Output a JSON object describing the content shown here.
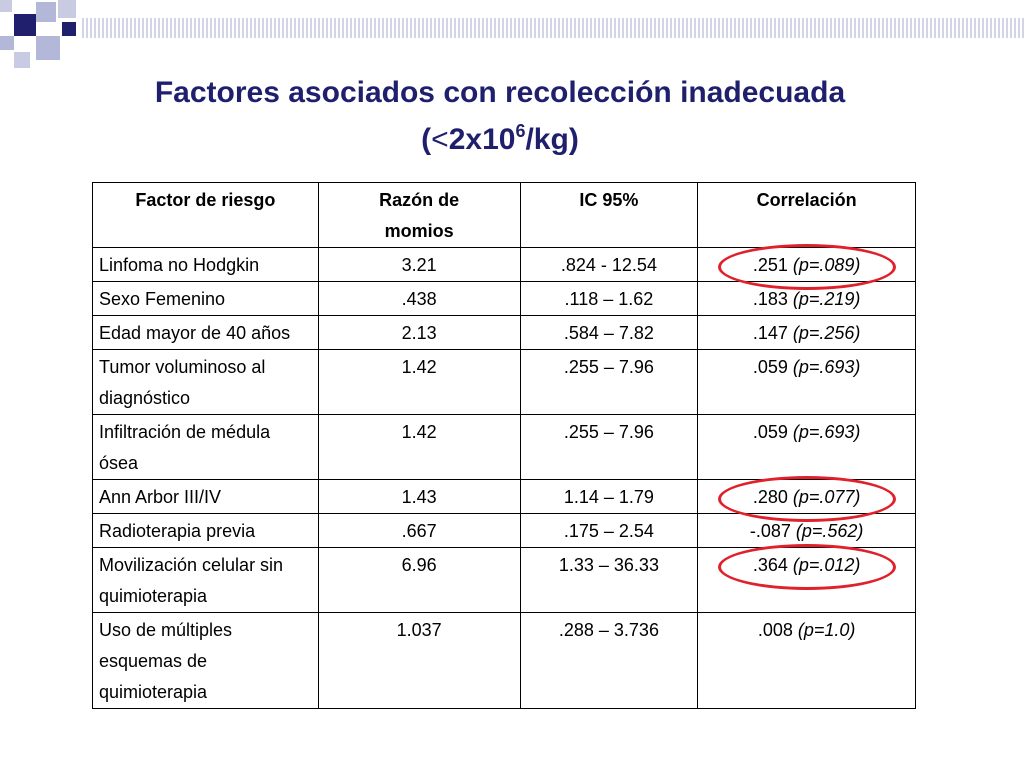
{
  "title": {
    "line1": "Factores asociados con recolección inadecuada",
    "line2_pre": "(",
    "line2_lt": "<",
    "line2_num": "2x10",
    "line2_sup": "6",
    "line2_post": "/kg)"
  },
  "table": {
    "headers": [
      "Factor de riesgo",
      "Razón de momios",
      "IC 95%",
      "Correlación"
    ],
    "rows": [
      {
        "factor": "Linfoma no Hodgkin",
        "or": "3.21",
        "ci": ".824 -  12.54",
        "corr": ".251",
        "p": "(p=.089)",
        "highlighted": true
      },
      {
        "factor": "Sexo Femenino",
        "or": ".438",
        "ci": ".118 – 1.62",
        "corr": ".183",
        "p": "(p=.219)",
        "highlighted": false
      },
      {
        "factor": "Edad mayor de 40 años",
        "or": "2.13",
        "ci": ".584 – 7.82",
        "corr": ".147",
        "p": "(p=.256)",
        "highlighted": false
      },
      {
        "factor": "Tumor voluminoso al diagnóstico",
        "or": "1.42",
        "ci": ".255 – 7.96",
        "corr": ".059",
        "p": "(p=.693)",
        "highlighted": false
      },
      {
        "factor": "Infiltración de médula ósea",
        "or": "1.42",
        "ci": ".255 – 7.96",
        "corr": ".059",
        "p": "(p=.693)",
        "highlighted": false
      },
      {
        "factor": "Ann Arbor III/IV",
        "or": "1.43",
        "ci": "1.14 – 1.79",
        "corr": ".280",
        "p": "(p=.077)",
        "highlighted": true
      },
      {
        "factor": "Radioterapia previa",
        "or": ".667",
        "ci": ".175 – 2.54",
        "corr": "-.087",
        "p": "(p=.562)",
        "highlighted": false
      },
      {
        "factor": "Movilización celular sin quimioterapia",
        "or": "6.96",
        "ci": "1.33 – 36.33",
        "corr": ".364",
        "p": "(p=.012)",
        "highlighted": true
      },
      {
        "factor": "Uso de múltiples esquemas de quimioterapia",
        "or": "1.037",
        "ci": ".288 – 3.736",
        "corr": ".008",
        "p": "(p=1.0)",
        "highlighted": false
      }
    ]
  },
  "colors": {
    "title": "#1f1f6e",
    "highlight_circle": "#e0202a",
    "square_dark": "#1f1f6e",
    "square_light": "#b4b8d8"
  }
}
